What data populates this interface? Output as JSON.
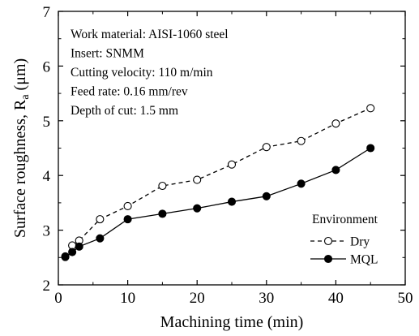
{
  "chart_data": {
    "type": "line",
    "xlabel": "Machining time (min)",
    "ylabel": "Surface roughness, R",
    "ylabel_subscript": "a",
    "ylabel_unit": " (μm)",
    "xlim": [
      0,
      50
    ],
    "ylim": [
      2,
      7
    ],
    "xticks": [
      0,
      10,
      20,
      30,
      40,
      50
    ],
    "yticks": [
      2,
      3,
      4,
      5,
      6,
      7
    ],
    "grid": false,
    "legend_position": "bottom-right",
    "legend_title": "Environment",
    "annotations": [
      "Work material: AISI-1060 steel",
      "Insert: SNMM",
      "Cutting velocity: 110 m/min",
      "Feed rate: 0.16 mm/rev",
      "Depth of cut: 1.5 mm"
    ],
    "series": [
      {
        "name": "Dry",
        "style": "dashed",
        "marker": "open-circle",
        "x": [
          1,
          2,
          3,
          6,
          10,
          15,
          20,
          25,
          30,
          35,
          40,
          45
        ],
        "y": [
          2.52,
          2.72,
          2.81,
          3.2,
          3.44,
          3.81,
          3.92,
          4.2,
          4.52,
          4.63,
          4.95,
          5.23
        ]
      },
      {
        "name": "MQL",
        "style": "solid",
        "marker": "filled-circle",
        "x": [
          1,
          2,
          3,
          6,
          10,
          15,
          20,
          25,
          30,
          35,
          40,
          45
        ],
        "y": [
          2.51,
          2.6,
          2.7,
          2.85,
          3.2,
          3.3,
          3.4,
          3.52,
          3.62,
          3.85,
          4.1,
          4.5
        ]
      }
    ]
  }
}
